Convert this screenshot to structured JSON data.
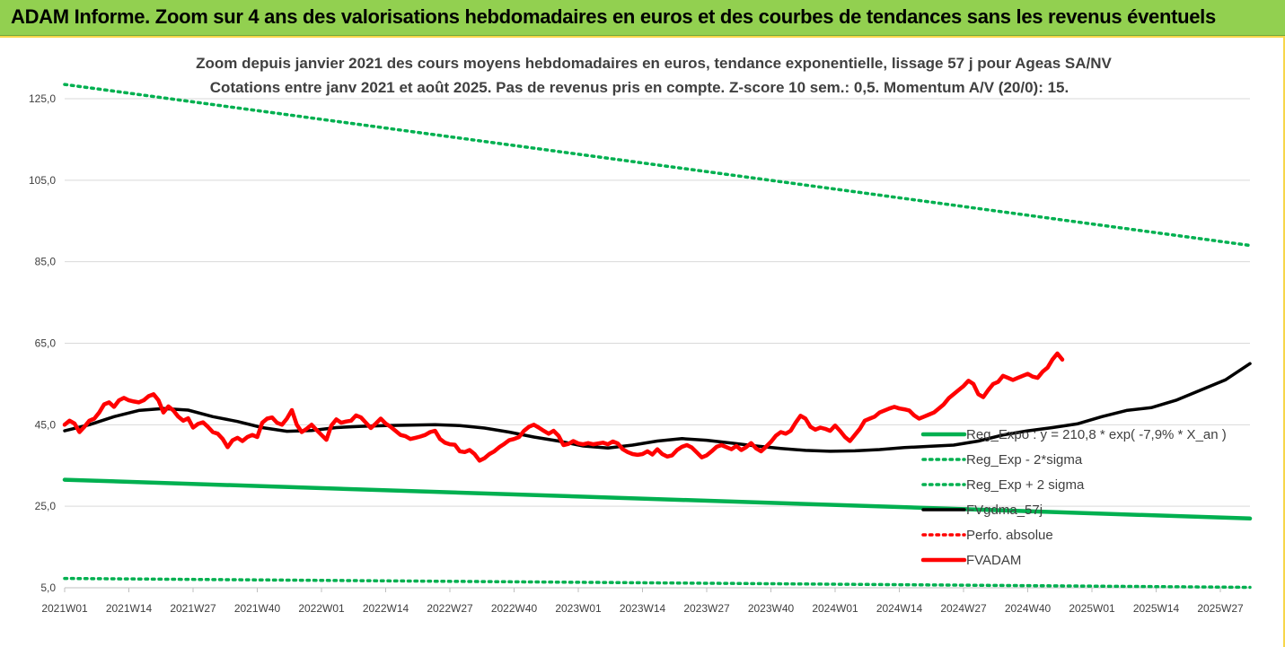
{
  "banner": {
    "title": "ADAM Informe. Zoom sur 4 ans des valorisations hebdomadaires en euros et des courbes de tendances sans les revenus éventuels"
  },
  "chart_data": {
    "type": "line",
    "title_lines": [
      "Zoom depuis janvier 2021 des cours moyens hebdomadaires en euros, tendance exponentielle, lissage 57 j pour Ageas SA/NV",
      "Cotations entre janv 2021 et août 2025. Pas de revenus pris en compte. Z-score 10 sem.: 0,5. Momentum A/V (20/0): 15."
    ],
    "xlabel": "",
    "ylabel": "",
    "ylim": [
      5,
      125
    ],
    "y_ticks": [
      "125,0",
      "105,0",
      "85,0",
      "65,0",
      "45,0",
      "25,0",
      "5,0"
    ],
    "y_tick_values": [
      125,
      105,
      85,
      65,
      45,
      25,
      5
    ],
    "x_ticks": [
      "2021W01",
      "2021W14",
      "2021W27",
      "2021W40",
      "2022W01",
      "2022W14",
      "2022W27",
      "2022W40",
      "2023W01",
      "2023W14",
      "2023W27",
      "2023W40",
      "2024W01",
      "2024W14",
      "2024W27",
      "2024W40",
      "2025W01",
      "2025W14",
      "2025W27"
    ],
    "x_range_weeks": [
      0,
      240
    ],
    "grid": true,
    "legend_position": "lower-right",
    "series": [
      {
        "name": "Reg_Expo : y = 210,8 * exp( -7,9% *  X_an )",
        "color": "#00b050",
        "style": "solid",
        "points": [
          [
            0,
            31.5
          ],
          [
            240,
            22.0
          ]
        ]
      },
      {
        "name": "Reg_Exp - 2*sigma",
        "color": "#00b050",
        "style": "dotted",
        "points": [
          [
            0,
            7.3
          ],
          [
            240,
            5.1
          ]
        ]
      },
      {
        "name": "Reg_Exp + 2 sigma",
        "color": "#00b050",
        "style": "dotted",
        "points": [
          [
            0,
            128.5
          ],
          [
            240,
            89.0
          ]
        ]
      },
      {
        "name": "FVgdma_57j",
        "color": "#000000",
        "style": "solid",
        "points": [
          [
            0,
            43.5
          ],
          [
            5,
            45
          ],
          [
            10,
            47
          ],
          [
            15,
            48.5
          ],
          [
            20,
            49
          ],
          [
            25,
            48.6
          ],
          [
            30,
            47
          ],
          [
            35,
            45.8
          ],
          [
            40,
            44.3
          ],
          [
            45,
            43.4
          ],
          [
            50,
            43.6
          ],
          [
            55,
            44.3
          ],
          [
            60,
            44.6
          ],
          [
            65,
            44.8
          ],
          [
            70,
            44.9
          ],
          [
            75,
            45
          ],
          [
            80,
            44.8
          ],
          [
            85,
            44.2
          ],
          [
            90,
            43.2
          ],
          [
            95,
            42
          ],
          [
            100,
            41
          ],
          [
            105,
            39.8
          ],
          [
            110,
            39.3
          ],
          [
            115,
            40
          ],
          [
            120,
            41
          ],
          [
            125,
            41.6
          ],
          [
            130,
            41.2
          ],
          [
            135,
            40.5
          ],
          [
            140,
            39.8
          ],
          [
            145,
            39.2
          ],
          [
            150,
            38.7
          ],
          [
            155,
            38.5
          ],
          [
            160,
            38.6
          ],
          [
            165,
            38.9
          ],
          [
            170,
            39.4
          ],
          [
            175,
            39.7
          ],
          [
            180,
            40
          ],
          [
            185,
            41
          ],
          [
            190,
            42.5
          ],
          [
            195,
            43.5
          ],
          [
            200,
            44.3
          ],
          [
            205,
            45.2
          ],
          [
            210,
            47
          ],
          [
            215,
            48.5
          ],
          [
            220,
            49.2
          ],
          [
            225,
            51
          ],
          [
            230,
            53.5
          ],
          [
            235,
            56
          ],
          [
            240,
            60
          ]
        ]
      },
      {
        "name": "Perfo. absolue",
        "color": "#ff0000",
        "style": "dotted",
        "points": []
      },
      {
        "name": "FVADAM",
        "color": "#ff0000",
        "style": "solid",
        "points": [
          [
            0,
            45
          ],
          [
            1,
            46
          ],
          [
            2,
            45.3
          ],
          [
            3,
            43.2
          ],
          [
            4,
            44.5
          ],
          [
            5,
            46
          ],
          [
            6,
            46.5
          ],
          [
            7,
            48
          ],
          [
            8,
            50
          ],
          [
            9,
            50.5
          ],
          [
            10,
            49.4
          ],
          [
            11,
            51
          ],
          [
            12,
            51.6
          ],
          [
            13,
            51
          ],
          [
            14,
            50.7
          ],
          [
            15,
            50.5
          ],
          [
            16,
            51
          ],
          [
            17,
            52
          ],
          [
            18,
            52.5
          ],
          [
            19,
            51
          ],
          [
            20,
            48
          ],
          [
            21,
            49.5
          ],
          [
            22,
            48.5
          ],
          [
            23,
            47
          ],
          [
            24,
            46
          ],
          [
            25,
            46.6
          ],
          [
            26,
            44.3
          ],
          [
            27,
            45.2
          ],
          [
            28,
            45.6
          ],
          [
            29,
            44.5
          ],
          [
            30,
            43.2
          ],
          [
            31,
            42.8
          ],
          [
            32,
            41.5
          ],
          [
            33,
            39.5
          ],
          [
            34,
            41.2
          ],
          [
            35,
            41.8
          ],
          [
            36,
            41
          ],
          [
            37,
            42
          ],
          [
            38,
            42.5
          ],
          [
            39,
            42
          ],
          [
            40,
            45.5
          ],
          [
            41,
            46.5
          ],
          [
            42,
            46.8
          ],
          [
            43,
            45.5
          ],
          [
            44,
            45
          ],
          [
            45,
            46.5
          ],
          [
            46,
            48.6
          ],
          [
            47,
            45
          ],
          [
            48,
            43.2
          ],
          [
            49,
            44
          ],
          [
            50,
            45
          ],
          [
            51,
            43.7
          ],
          [
            52,
            42.5
          ],
          [
            53,
            41.3
          ],
          [
            54,
            44.8
          ],
          [
            55,
            46.3
          ],
          [
            56,
            45.5
          ],
          [
            57,
            45.8
          ],
          [
            58,
            46
          ],
          [
            59,
            47.3
          ],
          [
            60,
            46.8
          ],
          [
            61,
            45.5
          ],
          [
            62,
            44.2
          ],
          [
            63,
            45.3
          ],
          [
            64,
            46.5
          ],
          [
            65,
            45.3
          ],
          [
            66,
            44.5
          ],
          [
            67,
            43.5
          ],
          [
            68,
            42.5
          ],
          [
            69,
            42.2
          ],
          [
            70,
            41.5
          ],
          [
            71,
            41.8
          ],
          [
            72,
            42.1
          ],
          [
            73,
            42.5
          ],
          [
            74,
            43.2
          ],
          [
            75,
            43.5
          ],
          [
            76,
            41.5
          ],
          [
            77,
            40.6
          ],
          [
            78,
            40.2
          ],
          [
            79,
            40.1
          ],
          [
            80,
            38.5
          ],
          [
            81,
            38.3
          ],
          [
            82,
            38.8
          ],
          [
            83,
            37.8
          ],
          [
            84,
            36.2
          ],
          [
            85,
            36.8
          ],
          [
            86,
            37.8
          ],
          [
            87,
            38.5
          ],
          [
            88,
            39.5
          ],
          [
            89,
            40.3
          ],
          [
            90,
            41.2
          ],
          [
            91,
            41.5
          ],
          [
            92,
            42
          ],
          [
            93,
            43.5
          ],
          [
            94,
            44.5
          ],
          [
            95,
            45
          ],
          [
            96,
            44.3
          ],
          [
            97,
            43.5
          ],
          [
            98,
            42.8
          ],
          [
            99,
            43.5
          ],
          [
            100,
            42.3
          ],
          [
            101,
            40
          ],
          [
            102,
            40.3
          ],
          [
            103,
            41
          ],
          [
            104,
            40.4
          ],
          [
            105,
            40.2
          ],
          [
            106,
            40.5
          ],
          [
            107,
            40.2
          ],
          [
            108,
            40.4
          ],
          [
            109,
            40.6
          ],
          [
            110,
            40.2
          ],
          [
            111,
            40.9
          ],
          [
            112,
            40.4
          ],
          [
            113,
            39
          ],
          [
            114,
            38.3
          ],
          [
            115,
            37.8
          ],
          [
            116,
            37.6
          ],
          [
            117,
            37.8
          ],
          [
            118,
            38.5
          ],
          [
            119,
            37.7
          ],
          [
            120,
            39
          ],
          [
            121,
            37.8
          ],
          [
            122,
            37.2
          ],
          [
            123,
            37.5
          ],
          [
            124,
            38.8
          ],
          [
            125,
            39.6
          ],
          [
            126,
            40
          ],
          [
            127,
            39.4
          ],
          [
            128,
            38.2
          ],
          [
            129,
            37
          ],
          [
            130,
            37.5
          ],
          [
            131,
            38.5
          ],
          [
            132,
            39.6
          ],
          [
            133,
            40
          ],
          [
            134,
            39.5
          ],
          [
            135,
            39
          ],
          [
            136,
            39.8
          ],
          [
            137,
            38.8
          ],
          [
            138,
            39.5
          ],
          [
            139,
            40.5
          ],
          [
            140,
            39.2
          ],
          [
            141,
            38.5
          ],
          [
            142,
            39.6
          ],
          [
            143,
            40.8
          ],
          [
            144,
            42.3
          ],
          [
            145,
            43.2
          ],
          [
            146,
            42.8
          ],
          [
            147,
            43.5
          ],
          [
            148,
            45.5
          ],
          [
            149,
            47.2
          ],
          [
            150,
            46.5
          ],
          [
            151,
            44.5
          ],
          [
            152,
            43.8
          ],
          [
            153,
            44.3
          ],
          [
            154,
            44
          ],
          [
            155,
            43.5
          ],
          [
            156,
            44.8
          ],
          [
            157,
            43.5
          ],
          [
            158,
            42
          ],
          [
            159,
            41
          ],
          [
            160,
            42.5
          ],
          [
            161,
            44
          ],
          [
            162,
            46
          ],
          [
            163,
            46.5
          ],
          [
            164,
            47
          ],
          [
            165,
            48
          ],
          [
            166,
            48.5
          ],
          [
            167,
            49
          ],
          [
            168,
            49.4
          ],
          [
            169,
            49
          ],
          [
            170,
            48.8
          ],
          [
            171,
            48.5
          ],
          [
            172,
            47.3
          ],
          [
            173,
            46.5
          ],
          [
            174,
            47
          ],
          [
            175,
            47.5
          ],
          [
            176,
            48
          ],
          [
            177,
            49
          ],
          [
            178,
            50
          ],
          [
            179,
            51.5
          ],
          [
            180,
            52.5
          ],
          [
            181,
            53.5
          ],
          [
            182,
            54.5
          ],
          [
            183,
            55.8
          ],
          [
            184,
            55
          ],
          [
            185,
            52.5
          ],
          [
            186,
            51.8
          ],
          [
            187,
            53.5
          ],
          [
            188,
            55
          ],
          [
            189,
            55.5
          ],
          [
            190,
            57
          ],
          [
            191,
            56.5
          ],
          [
            192,
            56
          ],
          [
            193,
            56.5
          ],
          [
            194,
            57
          ],
          [
            195,
            57.5
          ],
          [
            196,
            56.8
          ],
          [
            197,
            56.5
          ],
          [
            198,
            58
          ],
          [
            199,
            59
          ],
          [
            200,
            61
          ],
          [
            201,
            62.5
          ],
          [
            202,
            61
          ]
        ]
      }
    ]
  }
}
